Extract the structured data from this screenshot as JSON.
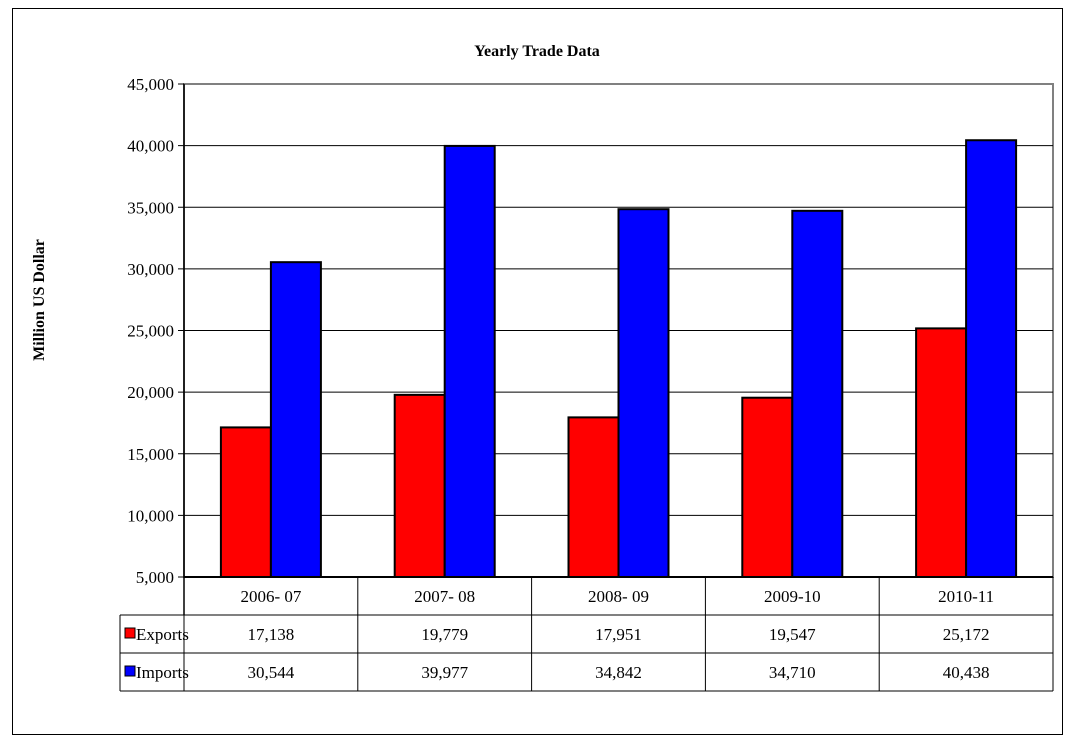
{
  "chart_data": {
    "type": "bar",
    "title": "Yearly Trade Data",
    "xlabel": "",
    "ylabel": "Million US Dollar",
    "ylim": [
      5000,
      45000
    ],
    "ytick_step": 5000,
    "yticks": [
      "5,000",
      "10,000",
      "15,000",
      "20,000",
      "25,000",
      "30,000",
      "35,000",
      "40,000",
      "45,000"
    ],
    "grid": true,
    "categories": [
      "2006- 07",
      "2007- 08",
      "2008- 09",
      "2009-10",
      "2010-11"
    ],
    "series": [
      {
        "name": "Exports",
        "color": "#ff0000",
        "values": [
          17138,
          19779,
          17951,
          19547,
          25172
        ],
        "labels": [
          "17,138",
          "19,779",
          "17,951",
          "19,547",
          "25,172"
        ]
      },
      {
        "name": "Imports",
        "color": "#0000ff",
        "values": [
          30544,
          39977,
          34842,
          34710,
          40438
        ],
        "labels": [
          "30,544",
          "39,977",
          "34,842",
          "34,710",
          "40,438"
        ]
      }
    ],
    "data_table": true
  }
}
